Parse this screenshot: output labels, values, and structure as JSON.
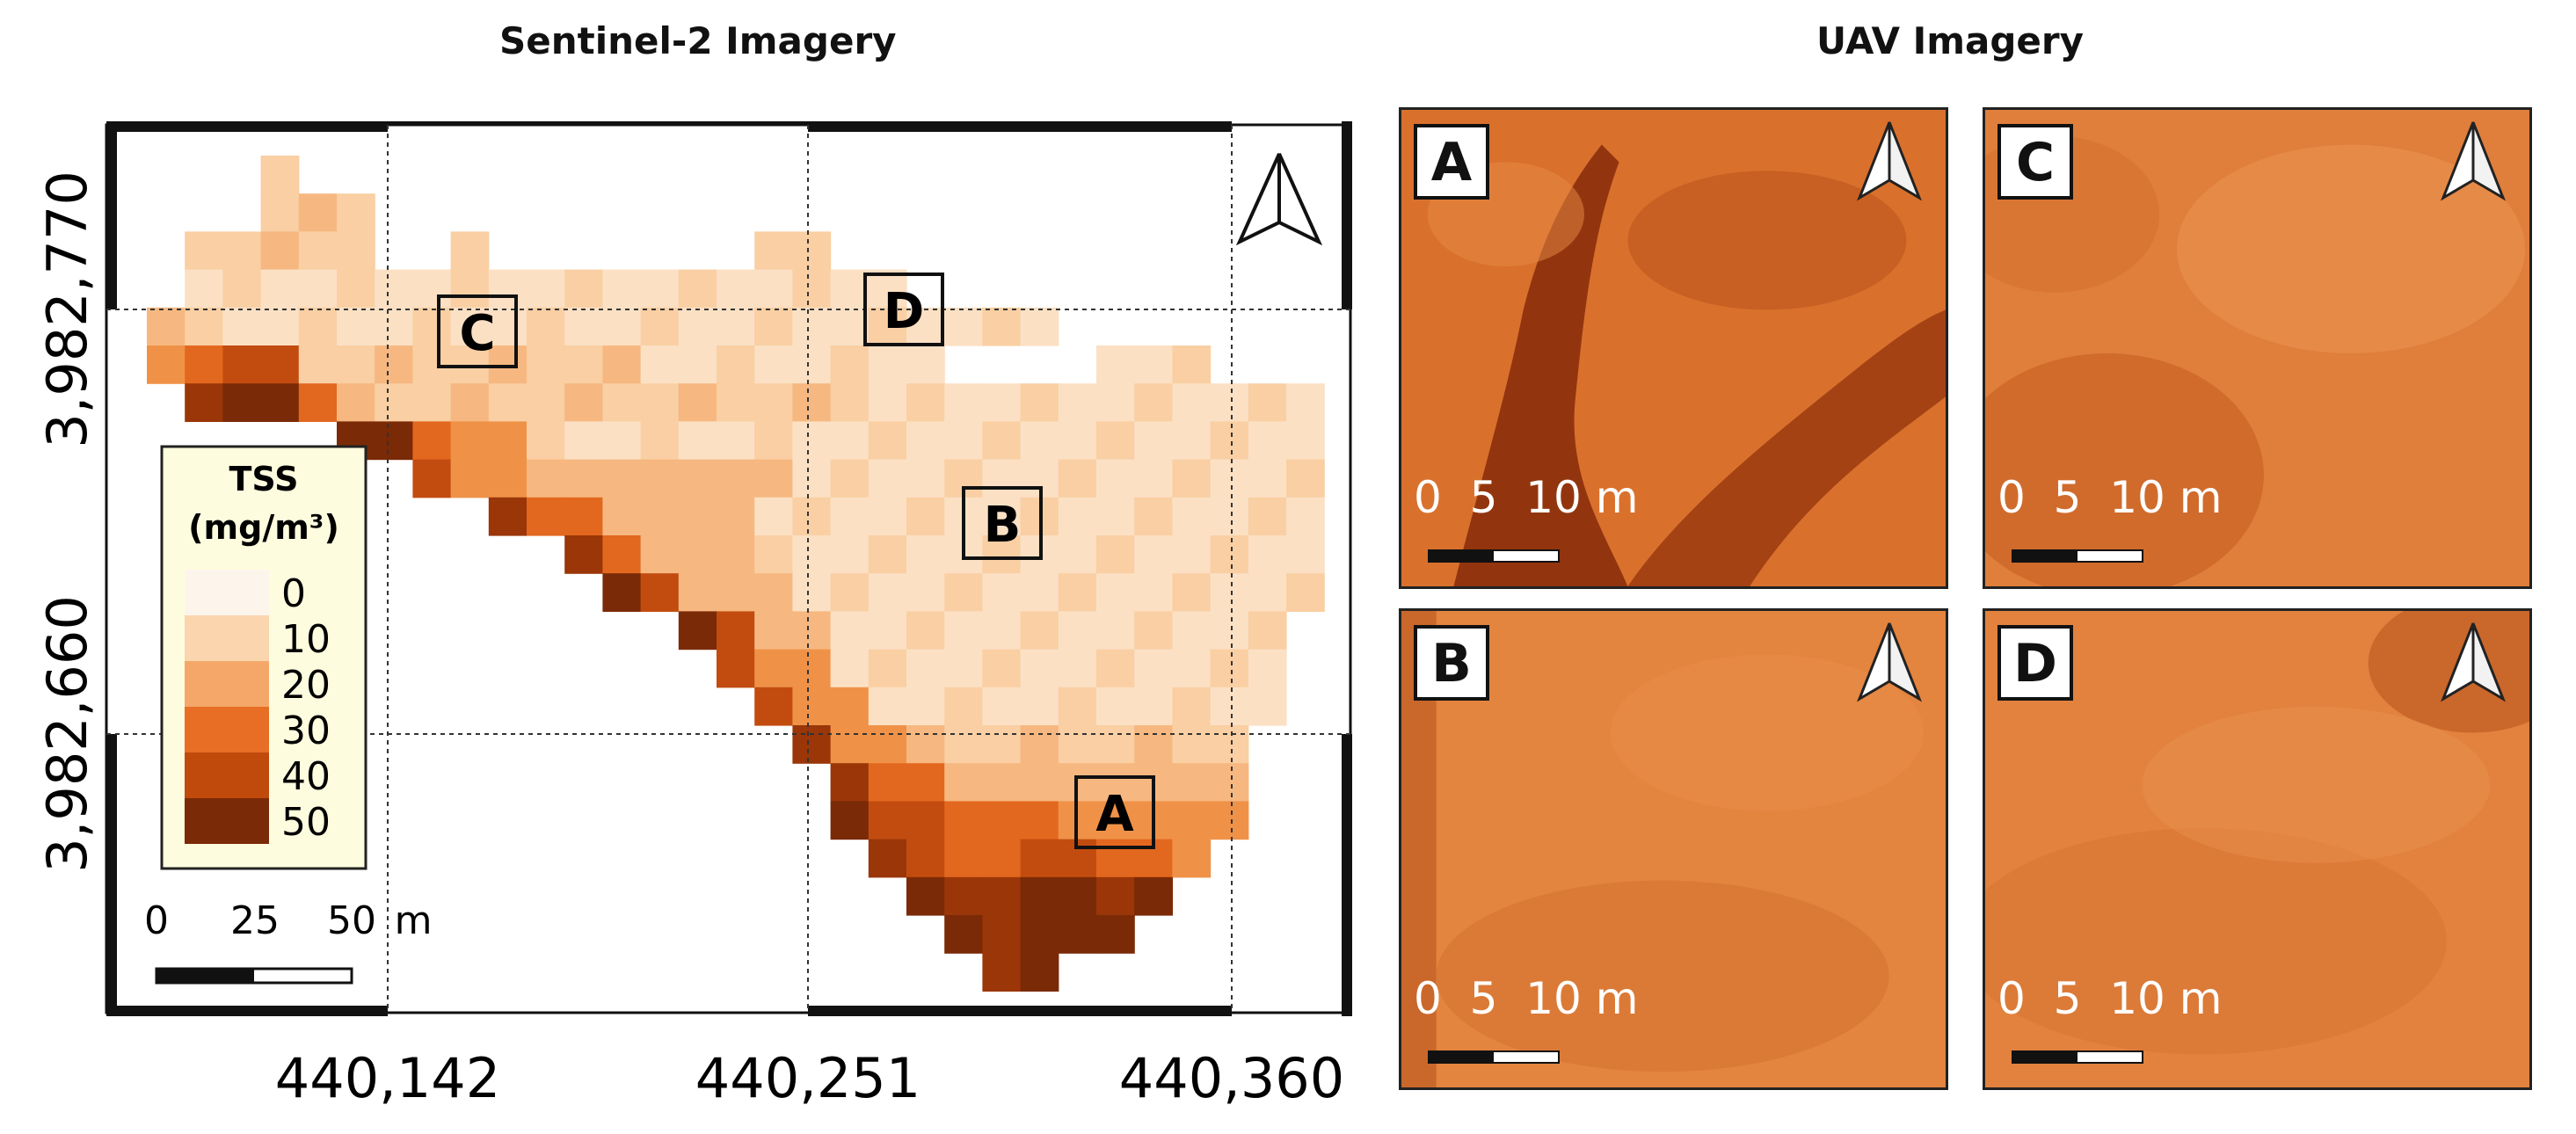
{
  "titles": {
    "sentinel": "Sentinel-2 Imagery",
    "uav": "UAV Imagery"
  },
  "map": {
    "y_ticks": [
      "3,982,770",
      "3,982,660"
    ],
    "x_ticks": [
      "440,142",
      "440,251",
      "440,360"
    ],
    "site_labels": [
      "C",
      "D",
      "B",
      "A"
    ],
    "legend": {
      "title_line1": "TSS",
      "title_line2": "(mg/m³)",
      "items": [
        {
          "label": "0",
          "color": "#fdf5ec"
        },
        {
          "label": "10",
          "color": "#fbd5ae"
        },
        {
          "label": "20",
          "color": "#f5a76a"
        },
        {
          "label": "30",
          "color": "#e86e25"
        },
        {
          "label": "40",
          "color": "#c04a0c"
        },
        {
          "label": "50",
          "color": "#7a2a06"
        }
      ]
    },
    "scale": {
      "t0": "0",
      "t1": "25",
      "t2": "50",
      "unit": "m"
    }
  },
  "uav_panels": [
    {
      "label": "A",
      "scale_text": "0  5  10 m"
    },
    {
      "label": "C",
      "scale_text": "0  5  10 m"
    },
    {
      "label": "B",
      "scale_text": "0  5  10 m"
    },
    {
      "label": "D",
      "scale_text": "0  5  10 m"
    }
  ],
  "colors": {
    "uav_base": "#dd7d3a",
    "uav_dark": "#8c2e0a"
  }
}
